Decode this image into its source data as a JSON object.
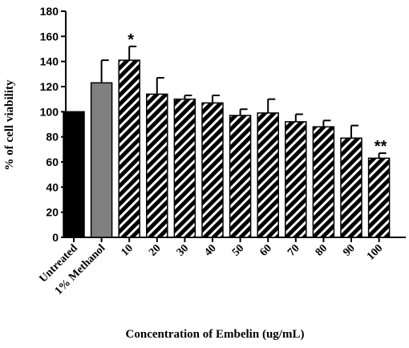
{
  "chart_data": {
    "type": "bar",
    "categories": [
      "Untreated",
      "1% Methanol",
      "10",
      "20",
      "30",
      "40",
      "50",
      "60",
      "70",
      "80",
      "90",
      "100"
    ],
    "values": [
      100,
      123,
      141,
      114,
      110,
      107,
      97,
      99,
      92,
      88,
      79,
      63
    ],
    "errors": [
      0,
      18,
      11,
      13,
      3,
      6,
      5,
      11,
      6,
      5,
      10,
      4
    ],
    "fills": [
      "solid-black",
      "solid-gray",
      "hatched",
      "hatched",
      "hatched",
      "hatched",
      "hatched",
      "hatched",
      "hatched",
      "hatched",
      "hatched",
      "hatched"
    ],
    "annotations": [
      {
        "category": "10",
        "text": "*"
      },
      {
        "category": "100",
        "text": "**"
      }
    ],
    "xlabel": "Concentration of Embelin (ug/mL)",
    "ylabel": "% of cell viability",
    "ylim": [
      0,
      180
    ],
    "yticks": [
      0,
      20,
      40,
      60,
      80,
      100,
      120,
      140,
      160,
      180
    ],
    "grid": false,
    "colors": {
      "black": "#000000",
      "gray": "#808080",
      "hatch_bg": "#000000",
      "hatch_line": "#ffffff"
    }
  }
}
